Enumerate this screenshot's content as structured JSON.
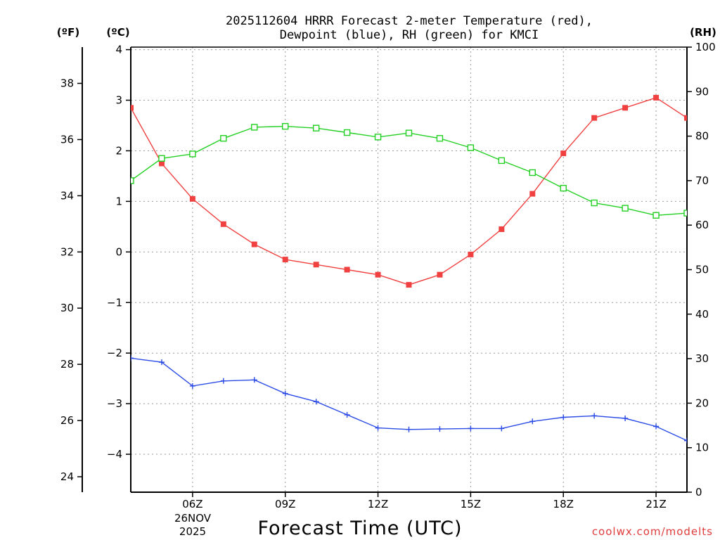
{
  "chart_data": {
    "type": "line",
    "title_line1": "2025112604 HRRR Forecast 2-meter Temperature (red),",
    "title_line2": "Dewpoint (blue), RH (green) for KMCI",
    "xlabel": "Forecast Time (UTC)",
    "credit": "coolwx.com/modelts",
    "date_label_line1": "26NOV",
    "date_label_line2": "2025",
    "units": {
      "fahrenheit": "(ºF)",
      "celsius": "(ºC)",
      "rh": "(RH)"
    },
    "hours": [
      4,
      5,
      6,
      7,
      8,
      9,
      10,
      11,
      12,
      13,
      14,
      15,
      16,
      17,
      18,
      19,
      20,
      21,
      22
    ],
    "xlim": [
      4,
      22
    ],
    "x_tick_hours": [
      6,
      9,
      12,
      15,
      18,
      21
    ],
    "x_tick_labels": [
      "06Z",
      "09Z",
      "12Z",
      "15Z",
      "18Z",
      "21Z"
    ],
    "celsius_ylim": [
      -4.75,
      4.05
    ],
    "celsius_ticks": [
      -4,
      -3,
      -2,
      -1,
      0,
      1,
      2,
      3,
      4
    ],
    "fahrenheit_ylim": [
      23.45,
      39.29
    ],
    "fahrenheit_ticks": [
      24,
      26,
      28,
      30,
      32,
      34,
      36,
      38
    ],
    "rh_ylim": [
      0,
      100
    ],
    "rh_ticks": [
      0,
      10,
      20,
      30,
      40,
      50,
      60,
      70,
      80,
      90,
      100
    ],
    "series": [
      {
        "name": "Temperature",
        "axis": "celsius",
        "color": "#f04040",
        "marker": "filled-square",
        "values": [
          2.85,
          1.75,
          1.05,
          0.55,
          0.15,
          -0.15,
          -0.25,
          -0.35,
          -0.45,
          -0.65,
          -0.45,
          -0.05,
          0.45,
          1.15,
          1.95,
          2.65,
          2.85,
          3.05,
          2.65
        ]
      },
      {
        "name": "Dewpoint",
        "axis": "celsius",
        "color": "#2b4be6",
        "marker": "plus",
        "values": [
          -2.1,
          -2.18,
          -2.65,
          -2.55,
          -2.53,
          -2.8,
          -2.96,
          -3.22,
          -3.48,
          -3.51,
          -3.5,
          -3.49,
          -3.49,
          -3.35,
          -3.27,
          -3.24,
          -3.29,
          -3.45,
          -3.73
        ]
      },
      {
        "name": "RH",
        "axis": "rh",
        "color": "#22d022",
        "marker": "open-square",
        "values": [
          70,
          75,
          76,
          79.5,
          82,
          82.2,
          81.8,
          80.8,
          79.8,
          80.7,
          79.5,
          77.4,
          74.5,
          71.8,
          68.3,
          65,
          63.8,
          62.2,
          62.7
        ]
      }
    ]
  }
}
